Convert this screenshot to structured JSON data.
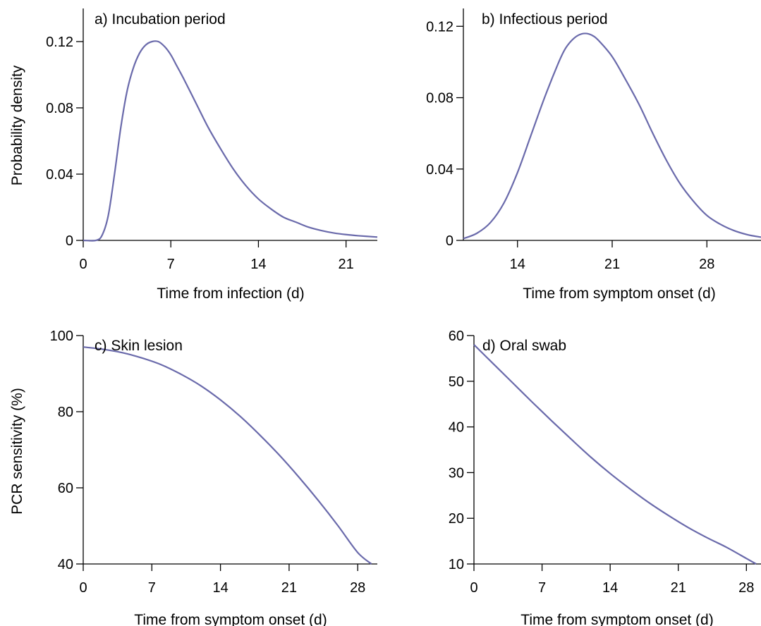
{
  "chart_data": [
    {
      "type": "line",
      "title": "a) Incubation period",
      "xlabel": "Time from infection (d)",
      "ylabel": "Probability density",
      "xlim": [
        0,
        23.5
      ],
      "ylim": [
        0,
        0.14
      ],
      "xticks": [
        0,
        7,
        14,
        21
      ],
      "xtick_labels": [
        "0",
        "7",
        "14",
        "21"
      ],
      "yticks": [
        0,
        0.04,
        0.08,
        0.12
      ],
      "ytick_labels": [
        "0",
        "0.04",
        "0.08",
        "0.12"
      ],
      "grid": false,
      "series": [
        {
          "color": "#6a6aab",
          "x": [
            0,
            1,
            1.5,
            2,
            2.5,
            3,
            3.5,
            4,
            4.5,
            5,
            5.5,
            6,
            6.5,
            7,
            7.5,
            8,
            9,
            10,
            11,
            12,
            13,
            14,
            15,
            16,
            17,
            18,
            19,
            20,
            21,
            22,
            23.5
          ],
          "y": [
            0,
            0,
            0.003,
            0.015,
            0.04,
            0.068,
            0.09,
            0.104,
            0.113,
            0.118,
            0.12,
            0.12,
            0.117,
            0.112,
            0.105,
            0.098,
            0.083,
            0.068,
            0.055,
            0.043,
            0.033,
            0.025,
            0.019,
            0.014,
            0.011,
            0.008,
            0.006,
            0.0045,
            0.0035,
            0.0028,
            0.002
          ]
        }
      ]
    },
    {
      "type": "line",
      "title": "b) Infectious period",
      "xlabel": "Time from symptom onset (d)",
      "ylabel": "",
      "xlim": [
        10,
        32
      ],
      "ylim": [
        0,
        0.13
      ],
      "xticks": [
        14,
        21,
        28
      ],
      "xtick_labels": [
        "14",
        "21",
        "28"
      ],
      "yticks": [
        0,
        0.04,
        0.08,
        0.12
      ],
      "ytick_labels": [
        "0",
        "0.04",
        "0.08",
        "0.12"
      ],
      "grid": false,
      "series": [
        {
          "color": "#6a6aab",
          "x": [
            10,
            11,
            12,
            13,
            14,
            15,
            16,
            17,
            17.5,
            18,
            18.5,
            19,
            19.5,
            20,
            21,
            22,
            23,
            24,
            25,
            26,
            27,
            28,
            29,
            30,
            31,
            32
          ],
          "y": [
            0.001,
            0.004,
            0.01,
            0.021,
            0.038,
            0.059,
            0.08,
            0.099,
            0.107,
            0.112,
            0.115,
            0.116,
            0.115,
            0.112,
            0.103,
            0.09,
            0.076,
            0.06,
            0.045,
            0.032,
            0.022,
            0.014,
            0.009,
            0.0055,
            0.0032,
            0.0018
          ]
        }
      ]
    },
    {
      "type": "line",
      "title": "c) Skin lesion",
      "xlabel": "Time from symptom onset (d)",
      "ylabel": "PCR sensitivity (%)",
      "xlim": [
        0,
        30
      ],
      "ylim": [
        40,
        100
      ],
      "xticks": [
        0,
        7,
        14,
        21,
        28
      ],
      "xtick_labels": [
        "0",
        "7",
        "14",
        "21",
        "28"
      ],
      "yticks": [
        40,
        60,
        80,
        100
      ],
      "ytick_labels": [
        "40",
        "60",
        "80",
        "100"
      ],
      "grid": false,
      "series": [
        {
          "color": "#6a6aab",
          "x": [
            0,
            2,
            4,
            6,
            8,
            10,
            12,
            14,
            16,
            18,
            20,
            22,
            24,
            26,
            28,
            29.4
          ],
          "y": [
            97,
            96.4,
            95.5,
            94.1,
            92.3,
            89.8,
            86.8,
            83.1,
            78.8,
            73.9,
            68.6,
            62.8,
            56.6,
            50,
            43,
            40
          ]
        }
      ]
    },
    {
      "type": "line",
      "title": "d) Oral swab",
      "xlabel": "Time from symptom onset (d)",
      "ylabel": "",
      "xlim": [
        0,
        29.5
      ],
      "ylim": [
        10,
        60
      ],
      "xticks": [
        0,
        7,
        14,
        21,
        28
      ],
      "xtick_labels": [
        "0",
        "7",
        "14",
        "21",
        "28"
      ],
      "yticks": [
        10,
        20,
        30,
        40,
        50,
        60
      ],
      "ytick_labels": [
        "10",
        "20",
        "30",
        "40",
        "50",
        "60"
      ],
      "grid": false,
      "series": [
        {
          "color": "#6a6aab",
          "x": [
            0,
            2,
            4,
            6,
            8,
            10,
            12,
            14,
            16,
            18,
            20,
            22,
            24,
            26,
            28,
            29
          ],
          "y": [
            58,
            53.8,
            49.6,
            45.4,
            41.3,
            37.3,
            33.4,
            29.8,
            26.5,
            23.4,
            20.6,
            18,
            15.7,
            13.6,
            11.2,
            10
          ]
        }
      ]
    }
  ]
}
